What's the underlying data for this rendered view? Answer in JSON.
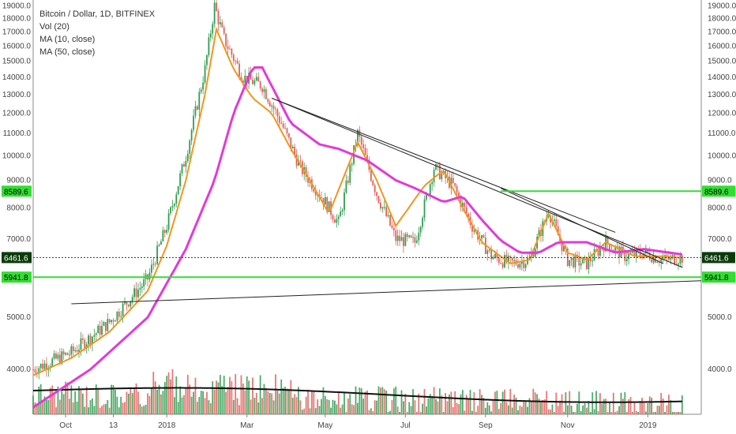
{
  "legend": {
    "line1": "Bitcoin / Dollar, 1D, BITFINEX",
    "line2": "Vol (20)",
    "line3": "MA (10, close)",
    "line4": "MA (50, close)"
  },
  "colors": {
    "up": "#2e9e4f",
    "down": "#e0605a",
    "ma10": "#f0961e",
    "ma50": "#e23ad9",
    "support": "#33dd33",
    "trend": "#222222",
    "volMa": "#111111",
    "priceBadge": "#0b3b0b"
  },
  "chart_data": {
    "type": "candlestick",
    "title": "Bitcoin / Dollar, 1D, BITFINEX",
    "x_axis": {
      "ticks": [
        "Oct",
        "13",
        "2018",
        "Mar",
        "May",
        "Jul",
        "Sep",
        "Nov",
        "2019"
      ]
    },
    "y_axis": {
      "ticks": [
        "19000.0",
        "18000.0",
        "17000.0",
        "16000.0",
        "15000.0",
        "14000.0",
        "13000.0",
        "12000.0",
        "11000.0",
        "10000.0",
        "9000.0",
        "8000.0",
        "7000.0",
        "6000.0",
        "5000.0",
        "4000.0"
      ],
      "range": [
        3300,
        19500
      ],
      "scale": "log",
      "position": "both"
    },
    "last_price": 6461.6,
    "last_price_label": "6461.6",
    "horizontal_levels": [
      {
        "value": 8589.6,
        "label": "8589.6"
      },
      {
        "value": 5941.8,
        "label": "5941.8"
      }
    ],
    "series": [
      {
        "name": "Bitcoin / Dollar",
        "kind": "candles",
        "approx_close_path": [
          [
            0,
            4000
          ],
          [
            20,
            4300
          ],
          [
            40,
            4900
          ],
          [
            60,
            5900
          ],
          [
            70,
            7400
          ],
          [
            80,
            10000
          ],
          [
            90,
            14500
          ],
          [
            95,
            19000
          ],
          [
            100,
            16500
          ],
          [
            110,
            14000
          ],
          [
            120,
            13500
          ],
          [
            130,
            11500
          ],
          [
            140,
            9500
          ],
          [
            150,
            8500
          ],
          [
            160,
            7500
          ],
          [
            170,
            11000
          ],
          [
            180,
            8500
          ],
          [
            190,
            7000
          ],
          [
            200,
            6900
          ],
          [
            210,
            9500
          ],
          [
            220,
            8800
          ],
          [
            230,
            7400
          ],
          [
            240,
            6500
          ],
          [
            250,
            6300
          ],
          [
            260,
            6400
          ],
          [
            270,
            7900
          ],
          [
            280,
            6400
          ],
          [
            290,
            6300
          ],
          [
            300,
            6900
          ],
          [
            310,
            6500
          ],
          [
            320,
            6600
          ],
          [
            330,
            6400
          ],
          [
            340,
            6461
          ]
        ]
      },
      {
        "name": "MA (10, close)",
        "kind": "line",
        "approx_path": [
          [
            0,
            3900
          ],
          [
            20,
            4200
          ],
          [
            40,
            4700
          ],
          [
            60,
            5600
          ],
          [
            70,
            6800
          ],
          [
            80,
            9000
          ],
          [
            90,
            13000
          ],
          [
            96,
            17200
          ],
          [
            105,
            14500
          ],
          [
            115,
            12800
          ],
          [
            125,
            12000
          ],
          [
            135,
            10300
          ],
          [
            145,
            9000
          ],
          [
            155,
            7800
          ],
          [
            170,
            10600
          ],
          [
            180,
            9000
          ],
          [
            190,
            7400
          ],
          [
            205,
            8800
          ],
          [
            215,
            9400
          ],
          [
            225,
            8000
          ],
          [
            235,
            6900
          ],
          [
            250,
            6300
          ],
          [
            260,
            6400
          ],
          [
            270,
            7800
          ],
          [
            280,
            6600
          ],
          [
            290,
            6400
          ],
          [
            300,
            6900
          ],
          [
            315,
            6500
          ],
          [
            330,
            6500
          ],
          [
            340,
            6450
          ]
        ]
      },
      {
        "name": "MA (50, close)",
        "kind": "line",
        "approx_path": [
          [
            0,
            3400
          ],
          [
            30,
            4000
          ],
          [
            60,
            5000
          ],
          [
            80,
            6700
          ],
          [
            95,
            9000
          ],
          [
            105,
            12000
          ],
          [
            115,
            14600
          ],
          [
            120,
            14600
          ],
          [
            135,
            11500
          ],
          [
            150,
            10500
          ],
          [
            160,
            10300
          ],
          [
            175,
            9800
          ],
          [
            190,
            9000
          ],
          [
            200,
            8700
          ],
          [
            215,
            8200
          ],
          [
            225,
            8400
          ],
          [
            235,
            7600
          ],
          [
            245,
            6950
          ],
          [
            255,
            6600
          ],
          [
            265,
            6600
          ],
          [
            275,
            6900
          ],
          [
            290,
            6900
          ],
          [
            305,
            6600
          ],
          [
            320,
            6700
          ],
          [
            340,
            6550
          ]
        ]
      }
    ],
    "volume": {
      "name": "Vol (20)",
      "y_ticks": [
        "5000.0",
        "4000.0"
      ]
    },
    "annotations": [
      {
        "kind": "trendline",
        "from": [
          125,
          12800
        ],
        "to": [
          305,
          7200
        ]
      },
      {
        "kind": "trendline",
        "from": [
          125,
          12800
        ],
        "to": [
          340,
          6200
        ]
      },
      {
        "kind": "trendline",
        "from": [
          20,
          5300
        ],
        "to": [
          350,
          5850
        ]
      },
      {
        "kind": "trendline",
        "from": [
          245,
          8700
        ],
        "to": [
          330,
          6300
        ]
      }
    ]
  }
}
